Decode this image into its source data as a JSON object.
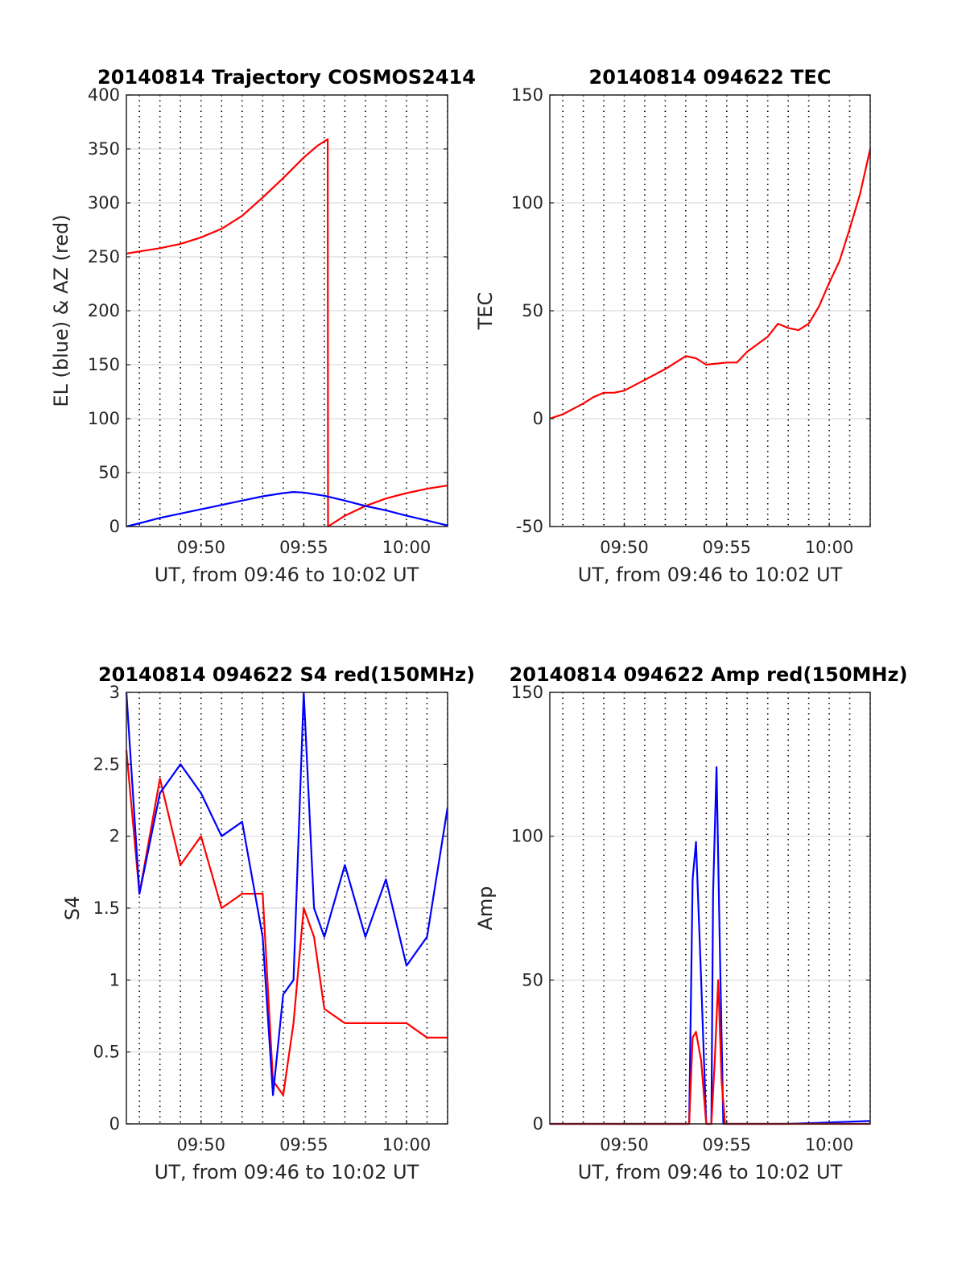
{
  "chart_data": [
    {
      "id": "trajectory",
      "type": "line",
      "title": "20140814 Trajectory COSMOS2414",
      "xlabel": "UT, from 09:46 to 10:02 UT",
      "ylabel": "EL (blue) & AZ (red)",
      "xlim": [
        "09:46:22",
        "10:02:00"
      ],
      "ylim": [
        0,
        400
      ],
      "yticks": [
        0,
        50,
        100,
        150,
        200,
        250,
        300,
        350,
        400
      ],
      "xticks": [
        "09:50",
        "09:55",
        "10:00"
      ],
      "grid": true,
      "series": [
        {
          "color": "#ff0000",
          "x": [
            "09:46:22",
            "09:47:00",
            "09:48:00",
            "09:49:00",
            "09:50:00",
            "09:51:00",
            "09:52:00",
            "09:53:00",
            "09:54:00",
            "09:55:00",
            "09:55:40",
            "09:56:10",
            "09:56:11",
            "09:57:00",
            "09:58:00",
            "09:59:00",
            "10:00:00",
            "10:01:00",
            "10:02:00"
          ],
          "values": [
            253,
            255,
            258,
            262,
            268,
            276,
            288,
            305,
            323,
            342,
            353,
            359,
            0,
            10,
            19,
            26,
            31,
            35,
            38
          ]
        },
        {
          "color": "#0000ff",
          "x": [
            "09:46:22",
            "09:47:00",
            "09:48:00",
            "09:49:00",
            "09:50:00",
            "09:51:00",
            "09:52:00",
            "09:53:00",
            "09:54:00",
            "09:54:30",
            "09:55:00",
            "09:56:00",
            "09:57:00",
            "09:58:00",
            "09:59:00",
            "10:00:00",
            "10:01:00",
            "10:02:00"
          ],
          "values": [
            0,
            3,
            8,
            12,
            16,
            20,
            24,
            28,
            31,
            32,
            31.5,
            28.5,
            24,
            19,
            15,
            10,
            5.5,
            1
          ]
        }
      ]
    },
    {
      "id": "tec",
      "type": "line",
      "title": "20140814 094622 TEC",
      "xlabel": "UT, from 09:46 to 10:02 UT",
      "ylabel": "TEC",
      "xlim": [
        "09:46:22",
        "10:02:00"
      ],
      "ylim": [
        -50,
        150
      ],
      "yticks": [
        -50,
        0,
        50,
        100,
        150
      ],
      "xticks": [
        "09:50",
        "09:55",
        "10:00"
      ],
      "grid": true,
      "series": [
        {
          "color": "#ff0000",
          "x": [
            "09:46:22",
            "09:47:00",
            "09:48:00",
            "09:48:30",
            "09:49:00",
            "09:49:30",
            "09:50:00",
            "09:51:00",
            "09:52:00",
            "09:53:00",
            "09:53:30",
            "09:54:00",
            "09:55:00",
            "09:55:30",
            "09:56:00",
            "09:57:00",
            "09:57:30",
            "09:58:00",
            "09:58:30",
            "09:59:00",
            "09:59:30",
            "10:00:00",
            "10:00:30",
            "10:01:00",
            "10:01:30",
            "10:02:00"
          ],
          "values": [
            0,
            2,
            7,
            10,
            12,
            12,
            13,
            18,
            23,
            29,
            28,
            25,
            26,
            26,
            31,
            38,
            44,
            42,
            41,
            44,
            52,
            63,
            73,
            88,
            104,
            125
          ]
        }
      ]
    },
    {
      "id": "s4",
      "type": "line",
      "title": "20140814 094622 S4 red(150MHz)",
      "xlabel": "UT, from 09:46 to 10:02 UT",
      "ylabel": "S4",
      "xlim": [
        "09:46:22",
        "10:02:00"
      ],
      "ylim": [
        0,
        3
      ],
      "yticks": [
        0,
        0.5,
        1,
        1.5,
        2,
        2.5,
        3
      ],
      "xticks": [
        "09:50",
        "09:55",
        "10:00"
      ],
      "grid": true,
      "series": [
        {
          "color": "#ff0000",
          "x": [
            "09:46:22",
            "09:47:00",
            "09:48:00",
            "09:49:00",
            "09:50:00",
            "09:51:00",
            "09:52:00",
            "09:53:00",
            "09:53:30",
            "09:54:00",
            "09:54:30",
            "09:55:00",
            "09:55:30",
            "09:56:00",
            "09:57:00",
            "09:58:00",
            "09:59:00",
            "10:00:00",
            "10:01:00",
            "10:02:00"
          ],
          "values": [
            2.6,
            1.6,
            2.4,
            1.8,
            2.0,
            1.5,
            1.6,
            1.6,
            0.3,
            0.2,
            0.7,
            1.5,
            1.3,
            0.8,
            0.7,
            0.7,
            0.7,
            0.7,
            0.6,
            0.6
          ]
        },
        {
          "color": "#0000ff",
          "x": [
            "09:46:22",
            "09:47:00",
            "09:48:00",
            "09:49:00",
            "09:50:00",
            "09:51:00",
            "09:52:00",
            "09:53:00",
            "09:53:30",
            "09:54:00",
            "09:54:30",
            "09:55:00",
            "09:55:30",
            "09:56:00",
            "09:57:00",
            "09:58:00",
            "09:59:00",
            "10:00:00",
            "10:01:00",
            "10:02:00"
          ],
          "values": [
            3.0,
            1.6,
            2.3,
            2.5,
            2.3,
            2.0,
            2.1,
            1.3,
            0.2,
            0.9,
            1.0,
            3.0,
            1.5,
            1.3,
            1.8,
            1.3,
            1.7,
            1.1,
            1.3,
            2.2
          ]
        }
      ]
    },
    {
      "id": "amp",
      "type": "line",
      "title": "20140814 094622 Amp red(150MHz)",
      "xlabel": "UT, from 09:46 to 10:02 UT",
      "ylabel": "Amp",
      "xlim": [
        "09:46:22",
        "10:02:00"
      ],
      "ylim": [
        0,
        150
      ],
      "yticks": [
        0,
        50,
        100,
        150
      ],
      "xticks": [
        "09:50",
        "09:55",
        "10:00"
      ],
      "grid": true,
      "series": [
        {
          "color": "#0000ff",
          "x": [
            "09:46:22",
            "09:50:00",
            "09:53:10",
            "09:53:20",
            "09:53:30",
            "09:53:45",
            "09:54:00",
            "09:54:15",
            "09:54:20",
            "09:54:30",
            "09:54:40",
            "09:54:50",
            "09:55:00",
            "09:58:00",
            "10:02:00"
          ],
          "values": [
            0,
            0,
            0,
            85,
            98,
            50,
            0,
            0,
            80,
            124,
            60,
            0,
            0,
            0,
            1
          ]
        },
        {
          "color": "#ff0000",
          "x": [
            "09:46:22",
            "09:53:10",
            "09:53:20",
            "09:53:30",
            "09:53:45",
            "09:54:00",
            "09:54:15",
            "09:54:25",
            "09:54:35",
            "09:54:45",
            "09:54:55",
            "10:02:00"
          ],
          "values": [
            0,
            0,
            30,
            32,
            22,
            0,
            0,
            22,
            50,
            15,
            0,
            0
          ]
        }
      ]
    }
  ]
}
